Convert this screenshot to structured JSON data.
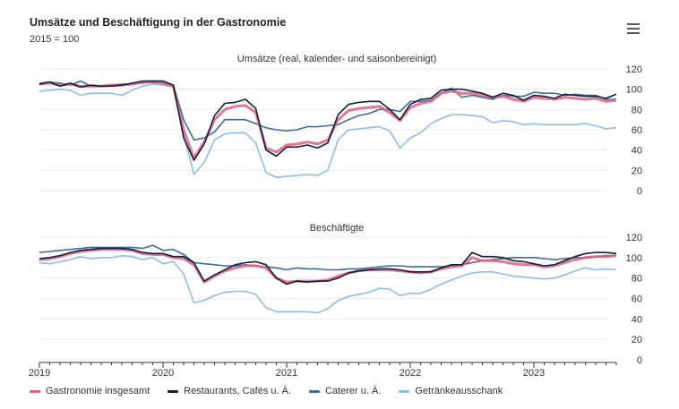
{
  "header": {
    "title": "Umsätze und Beschäftigung in der Gastronomie",
    "subtitle": "2015 = 100",
    "menu_icon": "hamburger-menu-icon"
  },
  "legend": [
    {
      "name": "Gastronomie insgesamt",
      "color": "#e0607e"
    },
    {
      "name": "Restaurants, Cafés u. Ä.",
      "color": "#0e1e3c"
    },
    {
      "name": "Caterer u. Ä.",
      "color": "#3d6b9e"
    },
    {
      "name": "Getränkeausschank",
      "color": "#8fbce8"
    }
  ],
  "chart_data": [
    {
      "type": "line",
      "title": "Umsätze (real, kalender- und saisonbereinigt)",
      "x_start": "2019-01",
      "x_end": "2023-09",
      "x_tick_labels": [
        "2019",
        "2020",
        "2021",
        "2022",
        "2023"
      ],
      "y_ticks": [
        0,
        20,
        40,
        60,
        80,
        100,
        120
      ],
      "ylim": [
        0,
        120
      ],
      "grid": true,
      "legend_position": "bottom",
      "series": [
        {
          "name": "Gastronomie insgesamt",
          "values": [
            105,
            106,
            104,
            105,
            103,
            103,
            103,
            104,
            104,
            105,
            107,
            107,
            106,
            103,
            60,
            32,
            48,
            70,
            80,
            83,
            84,
            77,
            42,
            38,
            45,
            46,
            48,
            46,
            50,
            70,
            79,
            81,
            82,
            83,
            77,
            69,
            82,
            86,
            88,
            96,
            98,
            96,
            96,
            94,
            92,
            93,
            90,
            88,
            92,
            91,
            90,
            92,
            91,
            90,
            91,
            88,
            89
          ]
        },
        {
          "name": "Restaurants, Cafés u. Ä.",
          "values": [
            105,
            107,
            103,
            106,
            102,
            104,
            103,
            103,
            104,
            106,
            108,
            108,
            108,
            104,
            52,
            30,
            46,
            74,
            86,
            87,
            90,
            81,
            40,
            34,
            43,
            43,
            45,
            42,
            47,
            75,
            85,
            87,
            88,
            88,
            80,
            70,
            85,
            90,
            91,
            99,
            100,
            100,
            98,
            96,
            92,
            96,
            94,
            89,
            94,
            93,
            91,
            95,
            94,
            93,
            93,
            91,
            95
          ]
        },
        {
          "name": "Caterer u. Ä.",
          "values": [
            106,
            107,
            106,
            104,
            108,
            103,
            103,
            104,
            105,
            105,
            106,
            107,
            106,
            104,
            70,
            50,
            52,
            58,
            70,
            70,
            70,
            66,
            62,
            60,
            59,
            60,
            63,
            63,
            64,
            65,
            70,
            74,
            76,
            80,
            80,
            78,
            88,
            88,
            89,
            96,
            101,
            92,
            94,
            92,
            90,
            94,
            93,
            93,
            97,
            96,
            96,
            94,
            95,
            94,
            94,
            90,
            90
          ]
        },
        {
          "name": "Getränkeausschank",
          "values": [
            98,
            99,
            100,
            99,
            94,
            96,
            96,
            96,
            94,
            99,
            103,
            105,
            104,
            102,
            55,
            16,
            28,
            50,
            56,
            57,
            57,
            47,
            18,
            13,
            14,
            15,
            16,
            15,
            20,
            50,
            60,
            61,
            62,
            63,
            59,
            42,
            52,
            57,
            66,
            71,
            75,
            75,
            74,
            73,
            67,
            69,
            68,
            65,
            66,
            65,
            65,
            65,
            65,
            66,
            64,
            61,
            62
          ]
        }
      ]
    },
    {
      "type": "line",
      "title": "Beschäftigte",
      "x_start": "2019-01",
      "x_end": "2023-09",
      "x_tick_labels": [
        "2019",
        "2020",
        "2021",
        "2022",
        "2023"
      ],
      "y_ticks": [
        0,
        20,
        40,
        60,
        80,
        100,
        120
      ],
      "ylim": [
        0,
        120
      ],
      "grid": true,
      "legend_position": "bottom",
      "series": [
        {
          "name": "Gastronomie insgesamt",
          "values": [
            98,
            99,
            101,
            104,
            106,
            107,
            108,
            108,
            108,
            107,
            104,
            103,
            103,
            100,
            99,
            93,
            76,
            82,
            87,
            90,
            92,
            92,
            90,
            80,
            76,
            77,
            77,
            77,
            78,
            82,
            85,
            87,
            88,
            88,
            88,
            87,
            86,
            85,
            86,
            89,
            91,
            92,
            100,
            97,
            97,
            96,
            94,
            93,
            93,
            91,
            92,
            95,
            98,
            100,
            101,
            101,
            102
          ]
        },
        {
          "name": "Restaurants, Cafés u. Ä.",
          "values": [
            99,
            100,
            102,
            105,
            107,
            108,
            109,
            109,
            109,
            108,
            105,
            104,
            104,
            101,
            101,
            95,
            77,
            83,
            88,
            93,
            95,
            96,
            93,
            80,
            74,
            77,
            76,
            77,
            77,
            80,
            85,
            87,
            88,
            89,
            89,
            88,
            86,
            86,
            86,
            90,
            93,
            93,
            105,
            101,
            101,
            100,
            97,
            96,
            94,
            92,
            93,
            97,
            101,
            104,
            105,
            105,
            104
          ]
        },
        {
          "name": "Caterer u. Ä.",
          "values": [
            105,
            106,
            107,
            108,
            109,
            110,
            110,
            110,
            110,
            110,
            109,
            112,
            107,
            108,
            103,
            95,
            94,
            93,
            92,
            92,
            93,
            92,
            91,
            90,
            88,
            90,
            89,
            89,
            88,
            88,
            89,
            89,
            90,
            91,
            92,
            92,
            91,
            91,
            91,
            91,
            92,
            93,
            95,
            97,
            98,
            99,
            100,
            100,
            100,
            99,
            98,
            99,
            100,
            100,
            101,
            102,
            102
          ]
        },
        {
          "name": "Getränkeausschank",
          "values": [
            95,
            94,
            96,
            98,
            101,
            99,
            100,
            100,
            102,
            101,
            98,
            100,
            94,
            96,
            84,
            56,
            58,
            63,
            66,
            67,
            67,
            64,
            51,
            47,
            47,
            47,
            47,
            46,
            50,
            58,
            62,
            64,
            66,
            70,
            69,
            63,
            65,
            65,
            69,
            74,
            78,
            82,
            85,
            86,
            86,
            84,
            82,
            81,
            80,
            79,
            80,
            83,
            87,
            90,
            88,
            89,
            88
          ]
        }
      ]
    }
  ]
}
